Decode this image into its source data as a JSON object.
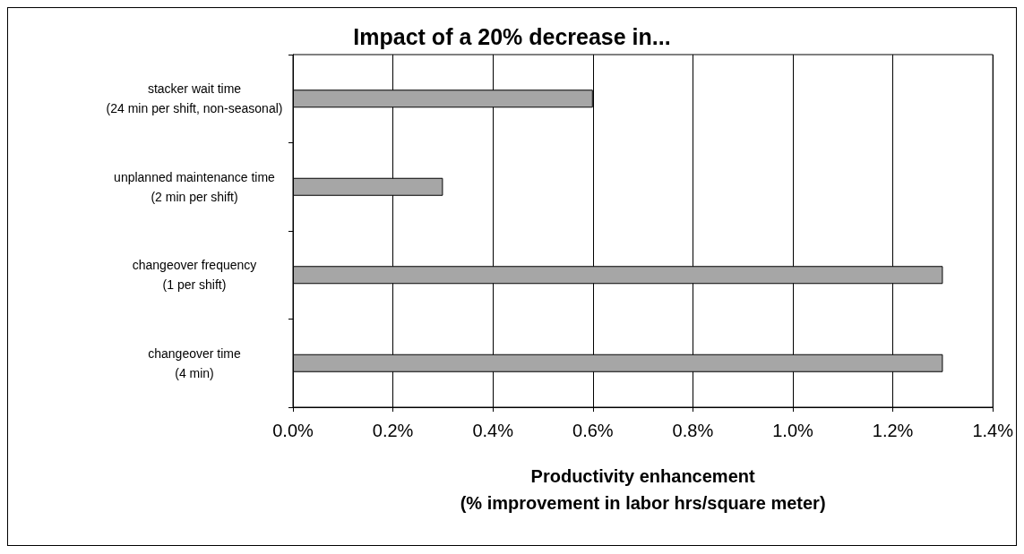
{
  "chart_data": {
    "type": "bar",
    "orientation": "horizontal",
    "title": "Impact of a 20% decrease in...",
    "xlabel": "Productivity enhancement\n(% improvement in labor hrs/square meter)",
    "categories": [
      "stacker wait time\n(24 min per shift, non-seasonal)",
      "unplanned maintenance time\n(2 min per shift)",
      "changeover frequency\n(1 per shift)",
      "changeover time\n(4 min)"
    ],
    "values": [
      0.6,
      0.3,
      1.3,
      1.3
    ],
    "color": "#a6a6a6",
    "xlim": [
      0,
      1.4
    ],
    "xticks": [
      {
        "value": 0,
        "label": "0.0%"
      },
      {
        "value": 0.2,
        "label": "0.2%"
      },
      {
        "value": 0.4,
        "label": "0.4%"
      },
      {
        "value": 0.6,
        "label": "0.6%"
      },
      {
        "value": 0.8,
        "label": "0.8%"
      },
      {
        "value": 1.0,
        "label": "1.0%"
      },
      {
        "value": 1.2,
        "label": "1.2%"
      },
      {
        "value": 1.4,
        "label": "1.4%"
      }
    ],
    "grid": "x"
  }
}
